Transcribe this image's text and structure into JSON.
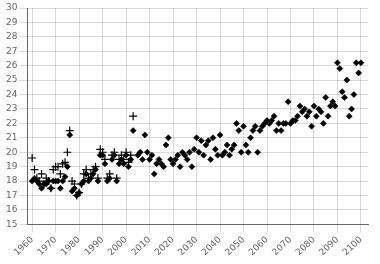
{
  "chart_data": {
    "type": "scatter",
    "series": [
      {
        "marker": "cross",
        "color": "#000000",
        "x": [
          1960,
          1961,
          1962,
          1963,
          1964,
          1965,
          1966,
          1967,
          1968,
          1969,
          1970,
          1971,
          1972,
          1973,
          1974,
          1975,
          1976,
          1977,
          1978,
          1979,
          1980,
          1981,
          1982,
          1983,
          1984,
          1985,
          1986,
          1987,
          1988,
          1989,
          1990,
          1991,
          1992,
          1993,
          1994,
          1995,
          1996,
          1997,
          1998,
          1999,
          2000,
          2001,
          2002,
          2003
        ],
        "values": [
          19.6,
          18.8,
          18.2,
          18.0,
          18.5,
          17.8,
          18.2,
          18.0,
          17.5,
          18.8,
          19.0,
          19.0,
          18.5,
          19.2,
          19.3,
          20.0,
          21.5,
          18.0,
          17.8,
          17.0,
          17.2,
          17.8,
          18.5,
          18.8,
          18.2,
          18.5,
          18.8,
          19.0,
          18.2,
          20.2,
          20.0,
          19.5,
          18.2,
          18.5,
          19.8,
          20.0,
          18.2,
          19.5,
          19.8,
          19.5,
          20.0,
          19.3,
          19.8,
          22.5
        ]
      },
      {
        "marker": "diamond",
        "color": "#000000",
        "x": [
          1960,
          1961,
          1962,
          1963,
          1964,
          1965,
          1966,
          1967,
          1968,
          1969,
          1970,
          1971,
          1972,
          1973,
          1974,
          1975,
          1976,
          1977,
          1978,
          1979,
          1980,
          1981,
          1982,
          1983,
          1984,
          1985,
          1986,
          1987,
          1988,
          1989,
          1990,
          1991,
          1992,
          1993,
          1994,
          1995,
          1996,
          1997,
          1998,
          1999,
          2000,
          2001,
          2002,
          2003,
          2005,
          2006,
          2007,
          2008,
          2009,
          2010,
          2011,
          2012,
          2013,
          2014,
          2015,
          2016,
          2017,
          2018,
          2019,
          2020,
          2021,
          2022,
          2023,
          2024,
          2025,
          2026,
          2027,
          2028,
          2029,
          2030,
          2031,
          2032,
          2033,
          2034,
          2035,
          2036,
          2037,
          2038,
          2039,
          2040,
          2041,
          2042,
          2043,
          2044,
          2045,
          2046,
          2047,
          2048,
          2049,
          2050,
          2051,
          2052,
          2053,
          2054,
          2055,
          2056,
          2057,
          2058,
          2059,
          2060,
          2061,
          2062,
          2063,
          2064,
          2065,
          2066,
          2067,
          2068,
          2069,
          2070,
          2071,
          2072,
          2073,
          2074,
          2075,
          2076,
          2077,
          2078,
          2079,
          2080,
          2081,
          2082,
          2083,
          2084,
          2085,
          2086,
          2087,
          2088,
          2089,
          2090,
          2091,
          2092,
          2093,
          2094,
          2095,
          2096,
          2097,
          2098,
          2099,
          2100
        ],
        "values": [
          18.0,
          18.2,
          18.0,
          17.8,
          17.5,
          17.8,
          17.8,
          18.0,
          17.5,
          18.0,
          18.0,
          18.0,
          17.5,
          18.0,
          18.3,
          19.0,
          21.2,
          17.3,
          17.5,
          17.0,
          17.2,
          17.8,
          18.0,
          18.5,
          18.0,
          18.2,
          18.5,
          18.8,
          18.0,
          19.8,
          19.8,
          19.2,
          18.0,
          18.2,
          19.5,
          19.8,
          18.0,
          19.2,
          19.5,
          19.2,
          19.8,
          19.0,
          19.5,
          21.5,
          19.8,
          20.0,
          19.5,
          21.2,
          20.0,
          19.5,
          19.8,
          18.5,
          19.2,
          19.5,
          19.2,
          19.0,
          20.5,
          21.0,
          19.5,
          19.2,
          19.5,
          19.8,
          19.0,
          20.0,
          19.8,
          19.5,
          20.0,
          19.0,
          20.2,
          21.0,
          20.0,
          20.8,
          19.8,
          20.5,
          20.8,
          19.5,
          21.0,
          20.2,
          19.8,
          21.2,
          19.8,
          20.0,
          20.5,
          19.8,
          20.2,
          20.5,
          22.0,
          21.5,
          20.0,
          21.8,
          20.5,
          20.0,
          21.0,
          21.5,
          21.8,
          20.0,
          21.5,
          21.8,
          22.0,
          22.2,
          22.0,
          22.2,
          22.5,
          21.5,
          22.0,
          21.5,
          22.0,
          22.0,
          23.5,
          22.0,
          22.2,
          22.2,
          22.5,
          23.2,
          22.8,
          23.0,
          22.5,
          22.8,
          21.8,
          23.2,
          22.5,
          23.0,
          22.8,
          22.0,
          23.8,
          22.5,
          23.2,
          23.5,
          23.2,
          26.2,
          25.8,
          24.2,
          23.8,
          25.0,
          22.5,
          23.0,
          24.0,
          26.2,
          25.5,
          26.2
        ]
      }
    ],
    "xlim": [
      1958,
      2103
    ],
    "ylim": [
      15,
      30
    ],
    "xticks": [
      1960,
      1970,
      1980,
      1990,
      2000,
      2010,
      2020,
      2030,
      2040,
      2050,
      2060,
      2070,
      2080,
      2090,
      2100
    ],
    "yticks": [
      15,
      16,
      17,
      18,
      19,
      20,
      21,
      22,
      23,
      24,
      25,
      26,
      27,
      28,
      29,
      30
    ],
    "grid": true
  }
}
